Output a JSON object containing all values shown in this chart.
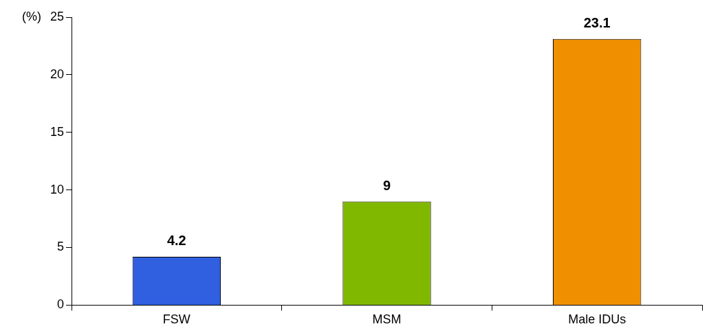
{
  "chart_data": {
    "type": "bar",
    "ylabel": "(%)",
    "categories": [
      "FSW",
      "MSM",
      "Male IDUs"
    ],
    "values": [
      4.2,
      9,
      23.1
    ],
    "colors": [
      "#3060e0",
      "#80b800",
      "#f09000"
    ],
    "ylim": [
      0,
      25
    ],
    "yticks": [
      0,
      5,
      10,
      15,
      20,
      25
    ],
    "grid": false,
    "legend": false,
    "data_labels": true
  }
}
